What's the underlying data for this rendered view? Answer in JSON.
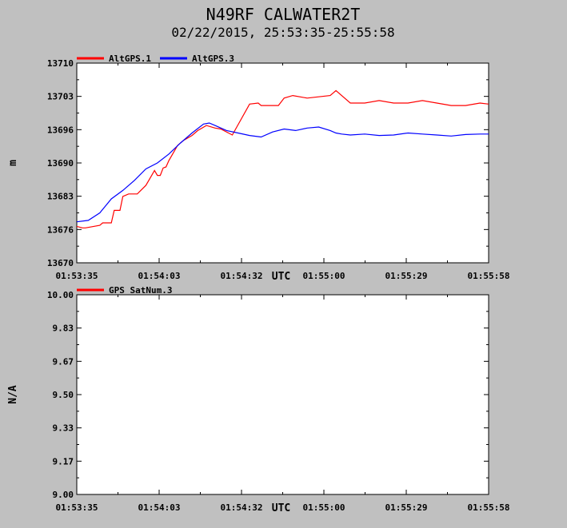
{
  "header": {
    "title": "N49RF CALWATER2T",
    "subtitle": "02/22/2015, 25:53:35-25:55:58"
  },
  "chart_data": [
    {
      "type": "line",
      "ylabel": "m",
      "xlabel": "UTC",
      "ylim": [
        13670,
        13710
      ],
      "yticks": [
        "13710",
        "13703",
        "13696",
        "13690",
        "13683",
        "13676",
        "13670"
      ],
      "xticks": [
        "01:53:35",
        "01:54:03",
        "01:54:32",
        "01:55:00",
        "01:55:29",
        "01:55:58"
      ],
      "xlim_seconds": [
        0,
        143
      ],
      "legend_placement": "top-left",
      "grid": false,
      "series": [
        {
          "name": "AltGPS.1",
          "color": "#ff0000",
          "x": [
            0,
            2,
            3,
            8,
            9,
            12,
            13,
            15,
            16,
            18,
            21,
            24,
            25,
            27,
            28,
            29,
            30,
            31,
            32,
            34,
            35,
            37,
            40,
            42,
            45,
            48,
            50,
            54,
            60,
            63,
            64,
            70,
            72,
            75,
            80,
            88,
            90,
            95,
            100,
            105,
            110,
            115,
            120,
            125,
            130,
            135,
            140,
            143
          ],
          "y": [
            13677.3,
            13677.0,
            13677.0,
            13677.5,
            13678.0,
            13678.0,
            13680.5,
            13680.5,
            13683.3,
            13683.8,
            13683.8,
            13685.5,
            13686.5,
            13688.5,
            13687.5,
            13687.5,
            13689.0,
            13689.2,
            13690.5,
            13692.5,
            13693.5,
            13694.5,
            13695.5,
            13696.5,
            13697.5,
            13697.0,
            13696.8,
            13695.6,
            13701.8,
            13702.0,
            13701.5,
            13701.5,
            13703.0,
            13703.5,
            13703.0,
            13703.5,
            13704.5,
            13702.0,
            13702.0,
            13702.5,
            13702.0,
            13702.0,
            13702.5,
            13702.0,
            13701.5,
            13701.5,
            13702.0,
            13701.8
          ]
        },
        {
          "name": "AltGPS.3",
          "color": "#0000ff",
          "x": [
            0,
            4,
            8,
            12,
            16,
            20,
            24,
            28,
            32,
            36,
            40,
            44,
            46,
            48,
            52,
            56,
            60,
            64,
            68,
            72,
            76,
            80,
            84,
            88,
            90,
            92,
            95,
            100,
            105,
            110,
            115,
            120,
            125,
            130,
            135,
            140,
            143
          ],
          "y": [
            13678.2,
            13678.5,
            13680.0,
            13682.8,
            13684.5,
            13686.5,
            13688.8,
            13690.0,
            13691.8,
            13694.0,
            13696.0,
            13697.8,
            13698.0,
            13697.5,
            13696.5,
            13696.0,
            13695.5,
            13695.2,
            13696.2,
            13696.8,
            13696.5,
            13697.0,
            13697.2,
            13696.5,
            13696.0,
            13695.8,
            13695.6,
            13695.8,
            13695.5,
            13695.6,
            13696.0,
            13695.8,
            13695.6,
            13695.4,
            13695.7,
            13695.8,
            13695.8
          ]
        }
      ]
    },
    {
      "type": "line",
      "ylabel": "N/A",
      "xlabel": "UTC",
      "ylim": [
        9.0,
        10.0
      ],
      "yticks": [
        "10.00",
        "9.83",
        "9.67",
        "9.50",
        "9.33",
        "9.17",
        "9.00"
      ],
      "xticks": [
        "01:53:35",
        "01:54:03",
        "01:54:32",
        "01:55:00",
        "01:55:29",
        "01:55:58"
      ],
      "xlim_seconds": [
        0,
        143
      ],
      "legend_placement": "top-left",
      "grid": false,
      "series": [
        {
          "name": "GPS_SatNum.3",
          "color": "#ff0000",
          "x": [],
          "y": []
        }
      ]
    }
  ]
}
